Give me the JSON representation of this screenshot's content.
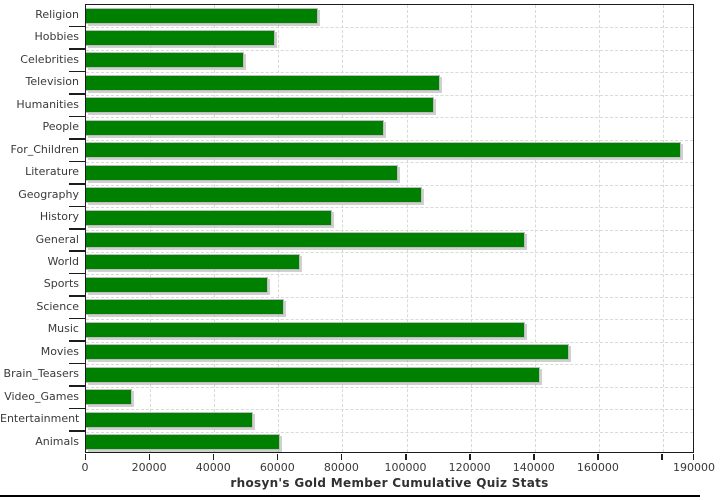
{
  "chart_data": {
    "type": "bar",
    "orientation": "horizontal",
    "title": "rhosyn's Gold Member Cumulative Quiz Stats",
    "categories": [
      "Religion",
      "Hobbies",
      "Celebrities",
      "Television",
      "Humanities",
      "People",
      "For_Children",
      "Literature",
      "Geography",
      "History",
      "General",
      "World",
      "Sports",
      "Science",
      "Music",
      "Movies",
      "Brain_Teasers",
      "Video_Games",
      "Entertainment",
      "Animals"
    ],
    "values": [
      72400,
      59000,
      49300,
      110400,
      108600,
      93000,
      185600,
      97300,
      104800,
      76800,
      137000,
      66800,
      56800,
      61800,
      137000,
      150700,
      141600,
      14400,
      52100,
      60500
    ],
    "xlabel": "",
    "ylabel": "",
    "xlim": [
      0,
      190000
    ],
    "x_tick_step": 20000,
    "x_tick_labels": [
      "0",
      "20000",
      "40000",
      "60000",
      "80000",
      "100000",
      "120000",
      "140000",
      "160000"
    ],
    "x_edge_label": "190000",
    "grid": "dashed",
    "legend_position": "none",
    "bar_color": "#008000",
    "bar_edge_color": "#bdbdbd",
    "grid_color": "#d9d9d9",
    "frame_color": "#1c1c1c",
    "text_color": "#3a3a3a"
  }
}
